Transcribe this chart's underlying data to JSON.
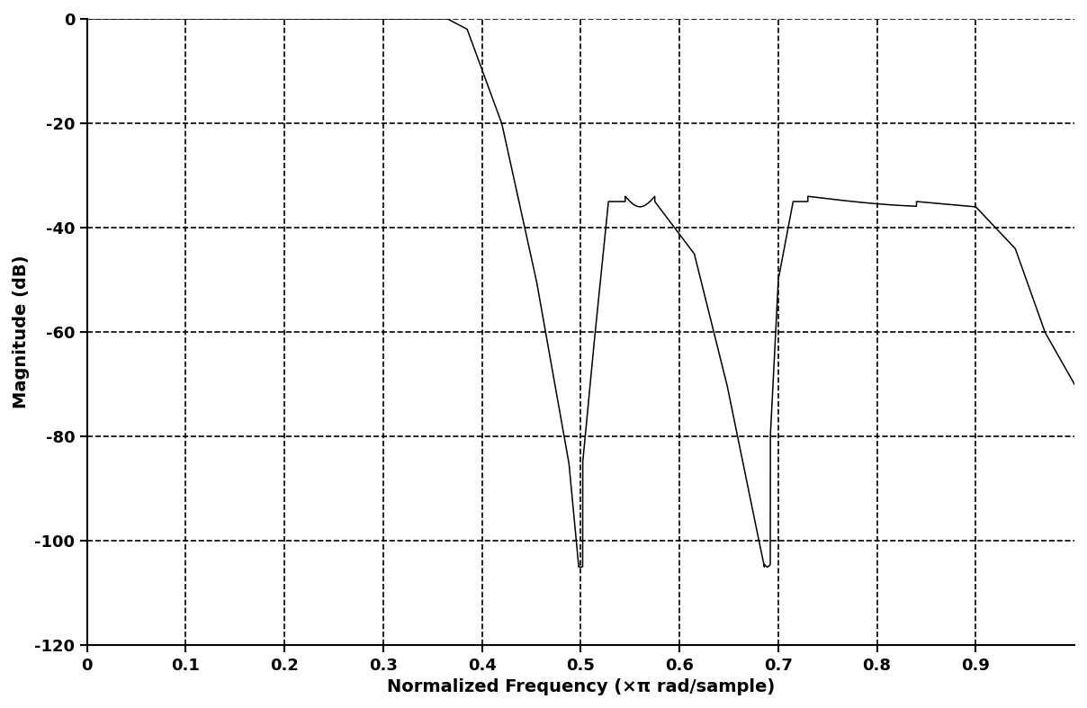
{
  "title": "",
  "xlabel": "Normalized Frequency (×π rad/sample)",
  "ylabel": "Magnitude (dB)",
  "xlim": [
    0,
    1.0
  ],
  "ylim": [
    -120,
    0
  ],
  "yticks": [
    0,
    -20,
    -40,
    -60,
    -80,
    -100,
    -120
  ],
  "xticks": [
    0,
    0.1,
    0.2,
    0.3,
    0.4,
    0.5,
    0.6,
    0.7,
    0.8,
    0.9
  ],
  "line_color": "#000000",
  "background_color": "#ffffff",
  "grid_color": "#000000",
  "grid_linestyle": "--",
  "grid_linewidth": 1.2,
  "line_width": 1.1,
  "axis_linewidth": 1.5
}
